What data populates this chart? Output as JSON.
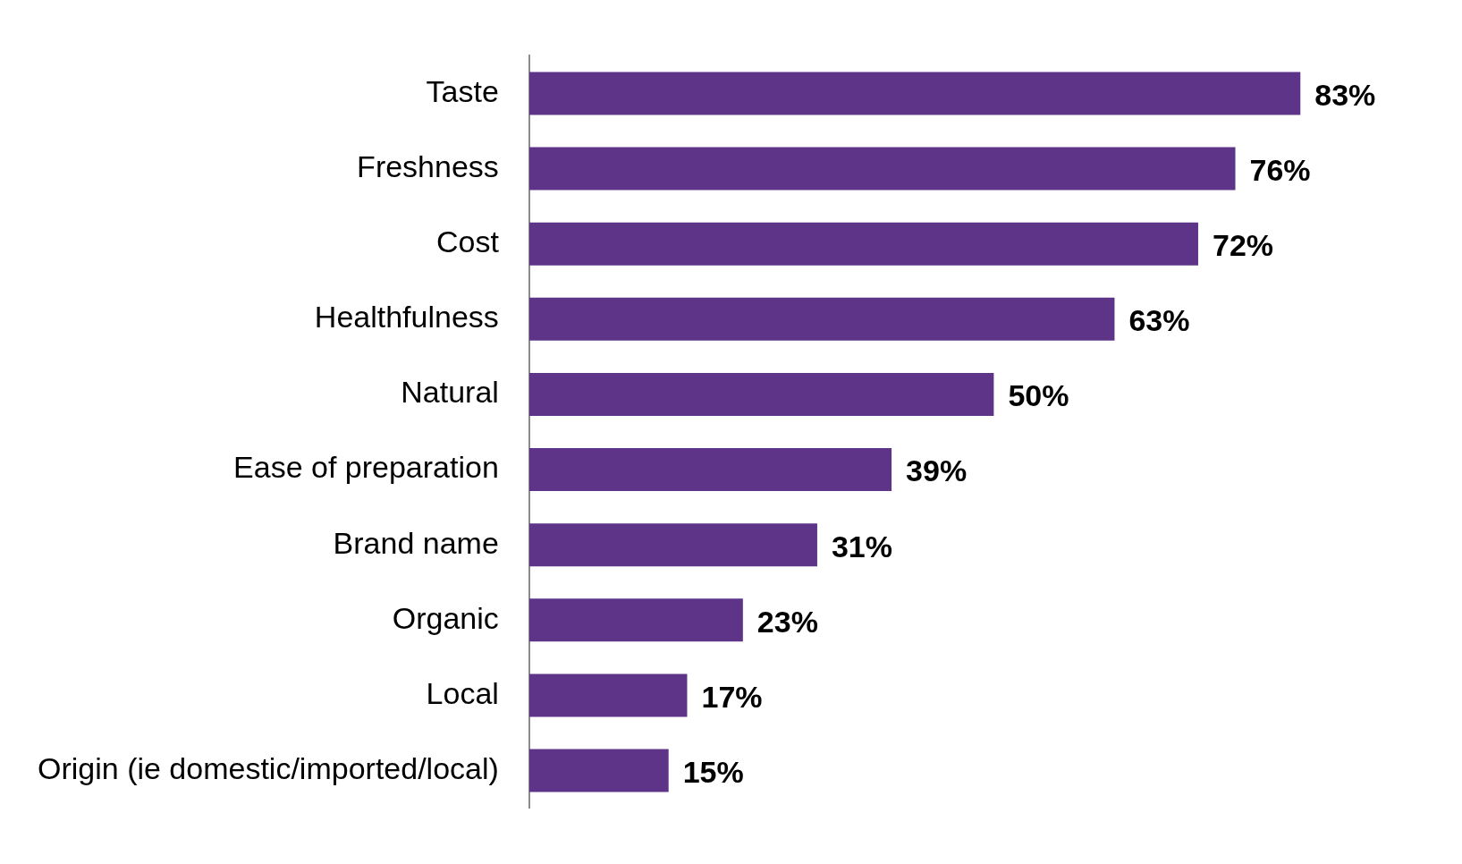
{
  "chart_data": {
    "type": "bar",
    "orientation": "horizontal",
    "categories": [
      "Taste",
      "Freshness",
      "Cost",
      "Healthfulness",
      "Natural",
      "Ease of preparation",
      "Brand name",
      "Organic",
      "Local",
      "Origin (ie domestic/imported/local)"
    ],
    "values": [
      83,
      76,
      72,
      63,
      50,
      39,
      31,
      23,
      17,
      15
    ],
    "value_labels": [
      "83%",
      "76%",
      "72%",
      "63%",
      "50%",
      "39%",
      "31%",
      "23%",
      "17%",
      "15%"
    ],
    "color": "#5e3489"
  }
}
